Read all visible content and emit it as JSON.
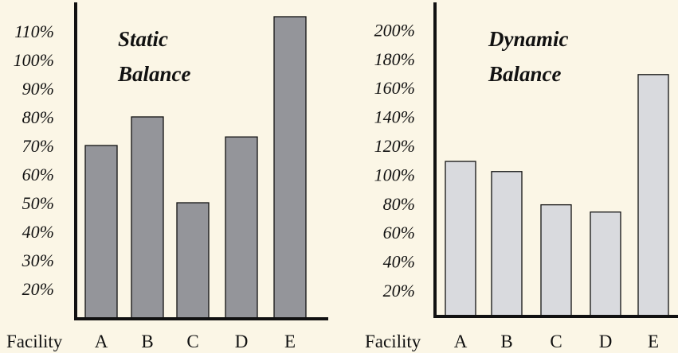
{
  "colors": {
    "background": "#fbf6e6",
    "static_bar": "#94959a",
    "dynamic_bar": "#d9dade",
    "axis": "#111111"
  },
  "x_prefix": "Facility",
  "chart_data": [
    {
      "type": "bar",
      "title_lines": [
        "Static",
        "Balance"
      ],
      "categories": [
        "A",
        "B",
        "C",
        "D",
        "E"
      ],
      "values": [
        70,
        80,
        50,
        73,
        115
      ],
      "yticks": [
        "20%",
        "30%",
        "40%",
        "50%",
        "60%",
        "70%",
        "80%",
        "90%",
        "100%",
        "110%"
      ],
      "ylim": [
        10,
        115
      ],
      "grid": false,
      "legend": "none"
    },
    {
      "type": "bar",
      "title_lines": [
        "Dynamic",
        "Balance"
      ],
      "categories": [
        "A",
        "B",
        "C",
        "D",
        "E"
      ],
      "values": [
        109,
        102,
        79,
        74,
        169
      ],
      "yticks": [
        "20%",
        "40%",
        "60%",
        "80%",
        "100%",
        "120%",
        "140%",
        "160%",
        "180%",
        "200%"
      ],
      "ylim": [
        0,
        208
      ],
      "grid": false,
      "legend": "none"
    }
  ]
}
